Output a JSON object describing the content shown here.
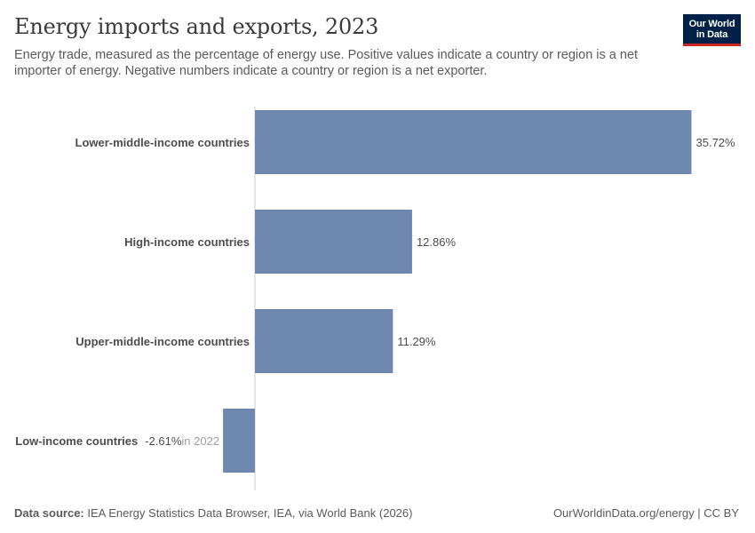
{
  "header": {
    "title": "Energy imports and exports, 2023",
    "subtitle": "Energy trade, measured as the percentage of energy use. Positive values indicate a country or region is a net importer of energy. Negative numbers indicate a country or region is a net exporter."
  },
  "logo": {
    "line1": "Our World",
    "line2": "in Data"
  },
  "footer": {
    "source_label": "Data source:",
    "source_text": "IEA Energy Statistics Data Browser, IEA, via World Bank (2026)",
    "link_text": "OurWorldinData.org/energy | CC BY"
  },
  "colors": {
    "bar": "#6f88b0",
    "axis": "#cccccc",
    "label": "#4d4d4d",
    "annotation": "#a1a1a1",
    "logo_bg": "#002147",
    "logo_accent": "#ce261e"
  },
  "chart_data": {
    "type": "bar",
    "orientation": "horizontal",
    "title": "Energy imports and exports, 2023",
    "categories": [
      "Lower-middle-income countries",
      "High-income countries",
      "Upper-middle-income countries",
      "Low-income countries"
    ],
    "values": [
      35.72,
      12.86,
      11.29,
      -2.61
    ],
    "value_labels": [
      "35.72%",
      "12.86%",
      "11.29%",
      "-2.61%"
    ],
    "annotations": [
      "",
      "",
      "",
      "in 2022"
    ],
    "unit": "%",
    "xlim": [
      -2.61,
      35.72
    ],
    "grid": false,
    "legend": "none"
  }
}
